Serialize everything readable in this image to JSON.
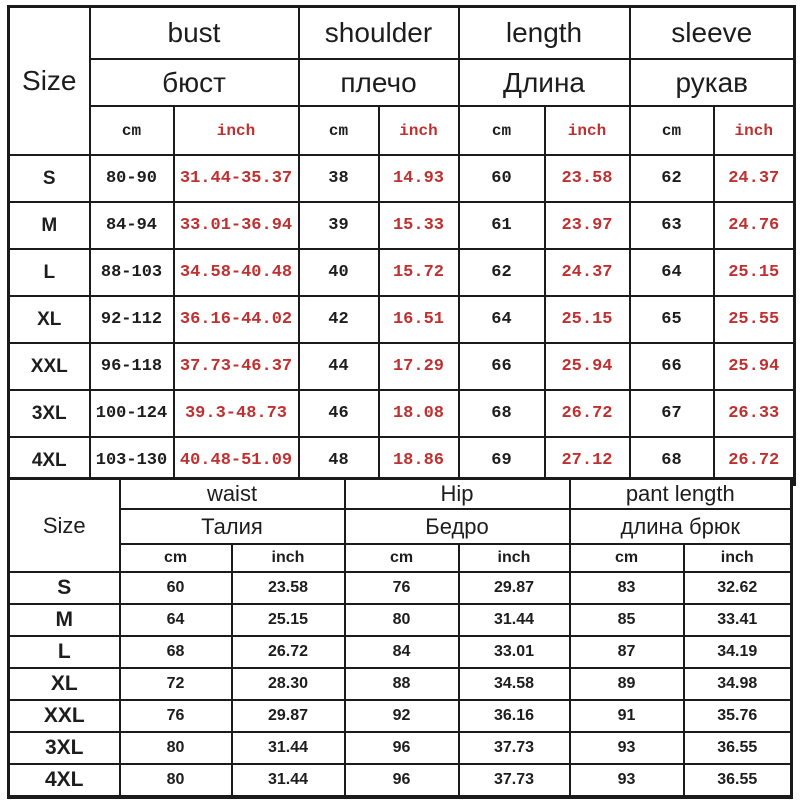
{
  "colors": {
    "background": "#ffffff",
    "border": "#1b1b1b",
    "text": "#1d1d1d",
    "red": "#c03030"
  },
  "chart_data": [
    {
      "type": "table",
      "name": "upper-body-size-chart",
      "corner_label": "Size",
      "column_groups": [
        {
          "label_en": "bust",
          "label_ru": "бюст",
          "units": [
            "cm",
            "inch"
          ]
        },
        {
          "label_en": "shoulder",
          "label_ru": "плечо",
          "units": [
            "cm",
            "inch"
          ]
        },
        {
          "label_en": "length",
          "label_ru": "Длина",
          "units": [
            "cm",
            "inch"
          ]
        },
        {
          "label_en": "sleeve",
          "label_ru": "рукав",
          "units": [
            "cm",
            "inch"
          ]
        }
      ],
      "rows": [
        {
          "size": "S",
          "values": [
            "80-90",
            "31.44-35.37",
            "38",
            "14.93",
            "60",
            "23.58",
            "62",
            "24.37"
          ]
        },
        {
          "size": "M",
          "values": [
            "84-94",
            "33.01-36.94",
            "39",
            "15.33",
            "61",
            "23.97",
            "63",
            "24.76"
          ]
        },
        {
          "size": "L",
          "values": [
            "88-103",
            "34.58-40.48",
            "40",
            "15.72",
            "62",
            "24.37",
            "64",
            "25.15"
          ]
        },
        {
          "size": "XL",
          "values": [
            "92-112",
            "36.16-44.02",
            "42",
            "16.51",
            "64",
            "25.15",
            "65",
            "25.55"
          ]
        },
        {
          "size": "XXL",
          "values": [
            "96-118",
            "37.73-46.37",
            "44",
            "17.29",
            "66",
            "25.94",
            "66",
            "25.94"
          ]
        },
        {
          "size": "3XL",
          "values": [
            "100-124",
            "39.3-48.73",
            "46",
            "18.08",
            "68",
            "26.72",
            "67",
            "26.33"
          ]
        },
        {
          "size": "4XL",
          "values": [
            "103-130",
            "40.48-51.09",
            "48",
            "18.86",
            "69",
            "27.12",
            "68",
            "26.72"
          ]
        }
      ]
    },
    {
      "type": "table",
      "name": "lower-body-size-chart",
      "corner_label": "Size",
      "column_groups": [
        {
          "label_en": "waist",
          "label_ru": "Талия",
          "units": [
            "cm",
            "inch"
          ]
        },
        {
          "label_en": "Hip",
          "label_ru": "Бедро",
          "units": [
            "cm",
            "inch"
          ]
        },
        {
          "label_en": "pant length",
          "label_ru": "длина брюк",
          "units": [
            "cm",
            "inch"
          ]
        }
      ],
      "rows": [
        {
          "size": "S",
          "values": [
            "60",
            "23.58",
            "76",
            "29.87",
            "83",
            "32.62"
          ]
        },
        {
          "size": "M",
          "values": [
            "64",
            "25.15",
            "80",
            "31.44",
            "85",
            "33.41"
          ]
        },
        {
          "size": "L",
          "values": [
            "68",
            "26.72",
            "84",
            "33.01",
            "87",
            "34.19"
          ]
        },
        {
          "size": "XL",
          "values": [
            "72",
            "28.30",
            "88",
            "34.58",
            "89",
            "34.98"
          ]
        },
        {
          "size": "XXL",
          "values": [
            "76",
            "29.87",
            "92",
            "36.16",
            "91",
            "35.76"
          ]
        },
        {
          "size": "3XL",
          "values": [
            "80",
            "31.44",
            "96",
            "37.73",
            "93",
            "36.55"
          ]
        },
        {
          "size": "4XL",
          "values": [
            "80",
            "31.44",
            "96",
            "37.73",
            "93",
            "36.55"
          ]
        }
      ]
    }
  ]
}
